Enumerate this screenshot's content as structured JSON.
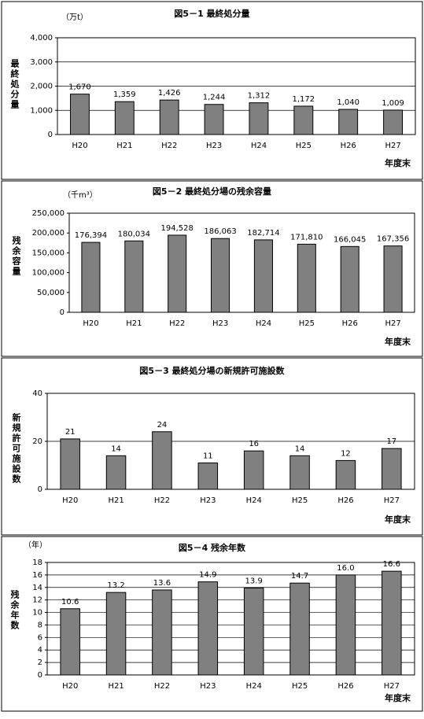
{
  "chart_data": [
    {
      "type": "bar",
      "title": "図5－1 最終処分量",
      "unit_label": "（万t）",
      "y_label": "最終処分量",
      "x_label": "年度末",
      "categories": [
        "H20",
        "H21",
        "H22",
        "H23",
        "H24",
        "H25",
        "H26",
        "H27"
      ],
      "values": [
        1670,
        1359,
        1426,
        1244,
        1312,
        1172,
        1040,
        1009
      ],
      "value_labels": [
        "1,670",
        "1,359",
        "1,426",
        "1,244",
        "1,312",
        "1,172",
        "1,040",
        "1,009"
      ],
      "color": "#808080",
      "ylim": [
        0,
        4000
      ],
      "yticks": [
        0,
        {
          "value": 1000,
          "label": "1,000"
        },
        {
          "value": 2000,
          "label": "2,000"
        },
        {
          "value": 3000,
          "label": "3,000"
        },
        {
          "value": 4000,
          "label": "4,000"
        }
      ],
      "grid": true
    },
    {
      "type": "bar",
      "title": "図5－2 最終処分場の残余容量",
      "unit_label": "（千m³）",
      "y_label": "残余容量",
      "x_label": "年度末",
      "categories": [
        "H20",
        "H21",
        "H22",
        "H23",
        "H24",
        "H25",
        "H26",
        "H27"
      ],
      "values": [
        176394,
        180034,
        194528,
        186063,
        182714,
        171810,
        166045,
        167356
      ],
      "value_labels": [
        "176,394",
        "180,034",
        "194,528",
        "186,063",
        "182,714",
        "171,810",
        "166,045",
        "167,356"
      ],
      "color": "#808080",
      "ylim": [
        0,
        250000
      ],
      "yticks": [
        0,
        {
          "value": 50000,
          "label": "50,000"
        },
        {
          "value": 100000,
          "label": "100,000"
        },
        {
          "value": 150000,
          "label": "150,000"
        },
        {
          "value": 200000,
          "label": "200,000"
        },
        {
          "value": 250000,
          "label": "250,000"
        }
      ],
      "grid": false
    },
    {
      "type": "bar",
      "title": "図5－3 最終処分場の新規許可施設数",
      "y_label": "新規許可施設数",
      "x_label": "年度末",
      "categories": [
        "H20",
        "H21",
        "H22",
        "H23",
        "H24",
        "H25",
        "H26",
        "H27"
      ],
      "values": [
        21,
        14,
        24,
        11,
        16,
        14,
        12,
        17
      ],
      "color": "#808080",
      "ylim": [
        0,
        40
      ],
      "yticks": [
        0,
        20,
        40
      ],
      "grid": true
    },
    {
      "type": "bar",
      "title": "図5－4 残余年数",
      "unit_label": "（年）",
      "y_label": "残余年数",
      "x_label": "年度末",
      "categories": [
        "H20",
        "H21",
        "H22",
        "H23",
        "H24",
        "H25",
        "H26",
        "H27"
      ],
      "values": [
        10.6,
        13.2,
        13.6,
        14.9,
        13.9,
        14.7,
        16.0,
        16.6
      ],
      "value_labels": [
        "10.6",
        "13.2",
        "13.6",
        "14.9",
        "13.9",
        "14.7",
        "16.0",
        "16.6"
      ],
      "color": "#808080",
      "ylim": [
        0,
        18
      ],
      "yticks": [
        0,
        2,
        4,
        6,
        8,
        10,
        12,
        14,
        16,
        18
      ],
      "grid": true
    }
  ]
}
